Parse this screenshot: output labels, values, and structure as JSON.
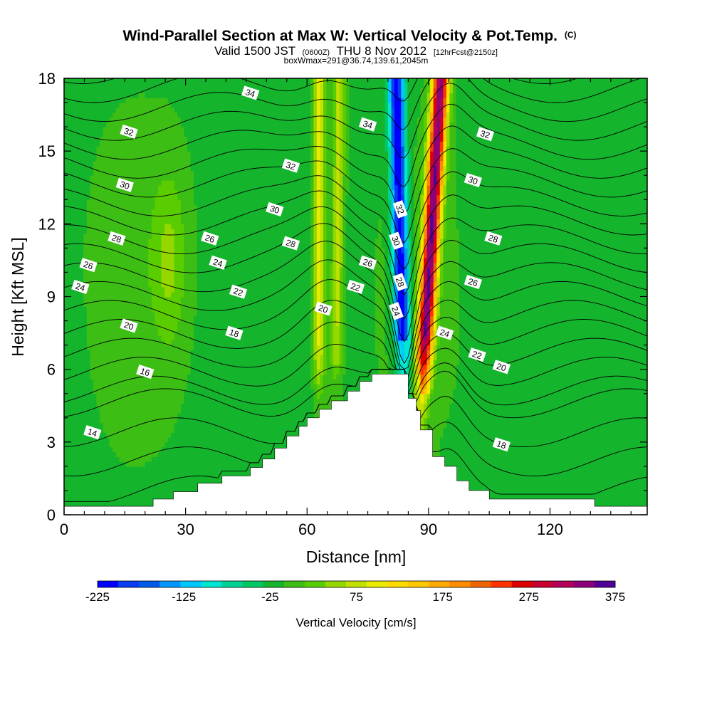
{
  "chart_data": {
    "type": "heatmap",
    "title": "Wind-Parallel Section at Max W: Vertical Velocity & Pot.Temp.",
    "title_mark": "(C)",
    "subtitle_parts": {
      "a": "Valid 1500 JST",
      "b": "(0600Z)",
      "c": "THU 8 Nov 2012",
      "d": "[12hrFcst@2150z]"
    },
    "subtitle2": "boxWmax=291@36.74,139.61,2045m",
    "xlabel": "Distance [nm]",
    "ylabel": "Height [Kft MSL]",
    "xlim": [
      0,
      144
    ],
    "ylim": [
      0,
      18
    ],
    "xticks": [
      0,
      30,
      60,
      90,
      120
    ],
    "yticks": [
      0,
      3,
      6,
      9,
      12,
      15,
      18
    ],
    "colorbar": {
      "label": "Vertical Velocity [cm/s]",
      "ticks": [
        -225,
        -125,
        -25,
        75,
        175,
        275,
        375
      ],
      "min": -225,
      "max": 375,
      "step": 25,
      "colors": [
        "#0000ff",
        "#0a3cf0",
        "#005ae6",
        "#0096ff",
        "#00c8ff",
        "#00e6d2",
        "#00d296",
        "#00c864",
        "#14b42d",
        "#3cbe14",
        "#5acd00",
        "#96d700",
        "#c3e100",
        "#ebeb00",
        "#ffdc00",
        "#ffc800",
        "#ffaa00",
        "#ff8c00",
        "#f06400",
        "#ff3200",
        "#dc0000",
        "#c80032",
        "#b4005a",
        "#8c0078",
        "#500096"
      ]
    },
    "terrain": [
      [
        0,
        0.35
      ],
      [
        22,
        0.35
      ],
      [
        22,
        0.65
      ],
      [
        27,
        0.65
      ],
      [
        27,
        0.95
      ],
      [
        33,
        0.95
      ],
      [
        33,
        1.3
      ],
      [
        39,
        1.3
      ],
      [
        39,
        1.6
      ],
      [
        46,
        1.6
      ],
      [
        46,
        1.95
      ],
      [
        49,
        1.95
      ],
      [
        49,
        2.3
      ],
      [
        52,
        2.3
      ],
      [
        52,
        2.75
      ],
      [
        55,
        2.75
      ],
      [
        55,
        3.25
      ],
      [
        58,
        3.25
      ],
      [
        58,
        3.65
      ],
      [
        60,
        3.65
      ],
      [
        60,
        4.0
      ],
      [
        63,
        4.0
      ],
      [
        63,
        4.35
      ],
      [
        66,
        4.35
      ],
      [
        66,
        4.7
      ],
      [
        70,
        4.7
      ],
      [
        70,
        5.1
      ],
      [
        73,
        5.1
      ],
      [
        73,
        5.5
      ],
      [
        76,
        5.5
      ],
      [
        76,
        5.8
      ],
      [
        85,
        5.8
      ],
      [
        85,
        4.8
      ],
      [
        87,
        4.8
      ],
      [
        87,
        4.3
      ],
      [
        88,
        4.3
      ],
      [
        88,
        3.5
      ],
      [
        91,
        3.5
      ],
      [
        91,
        2.4
      ],
      [
        94,
        2.4
      ],
      [
        94,
        2.0
      ],
      [
        97,
        2.0
      ],
      [
        97,
        1.4
      ],
      [
        100,
        1.4
      ],
      [
        100,
        1.0
      ],
      [
        105,
        1.0
      ],
      [
        105,
        0.65
      ],
      [
        131,
        0.65
      ],
      [
        131,
        0.35
      ],
      [
        144,
        0.35
      ]
    ],
    "w_background": [
      -10,
      10
    ],
    "w_features": [
      {
        "type": "updraft_band",
        "x_base": 63,
        "x_top": 63,
        "peak": 130
      },
      {
        "type": "updraft_band",
        "x_base": 67,
        "x_top": 68,
        "peak": 90
      },
      {
        "type": "downdraft_band",
        "x_base": 84,
        "x_top": 82,
        "peak": -225
      },
      {
        "type": "updraft_band",
        "x_base": 88,
        "x_top": 93,
        "peak": 375
      },
      {
        "type": "updraft_patch",
        "x": 26,
        "y": 10.5,
        "peak": 50
      }
    ],
    "theta_levels": [
      14,
      15,
      16,
      17,
      18,
      19,
      20,
      21,
      22,
      23,
      24,
      25,
      26,
      27,
      28,
      29,
      30,
      31,
      32,
      33,
      34,
      35
    ],
    "theta_labels": [
      {
        "text": "34",
        "x": 46,
        "y": 17.4
      },
      {
        "text": "32",
        "x": 16,
        "y": 15.8
      },
      {
        "text": "34",
        "x": 75,
        "y": 16.1
      },
      {
        "text": "32",
        "x": 104,
        "y": 15.7
      },
      {
        "text": "32",
        "x": 56,
        "y": 14.4
      },
      {
        "text": "30",
        "x": 15,
        "y": 13.6
      },
      {
        "text": "30",
        "x": 101,
        "y": 13.8
      },
      {
        "text": "30",
        "x": 52,
        "y": 12.6
      },
      {
        "text": "32",
        "x": 83,
        "y": 12.6
      },
      {
        "text": "28",
        "x": 13,
        "y": 11.4
      },
      {
        "text": "26",
        "x": 36,
        "y": 11.4
      },
      {
        "text": "28",
        "x": 56,
        "y": 11.2
      },
      {
        "text": "30",
        "x": 82,
        "y": 11.3
      },
      {
        "text": "28",
        "x": 106,
        "y": 11.4
      },
      {
        "text": "26",
        "x": 6,
        "y": 10.3
      },
      {
        "text": "24",
        "x": 38,
        "y": 10.4
      },
      {
        "text": "26",
        "x": 75,
        "y": 10.4
      },
      {
        "text": "24",
        "x": 4,
        "y": 9.4
      },
      {
        "text": "22",
        "x": 43,
        "y": 9.2
      },
      {
        "text": "22",
        "x": 72,
        "y": 9.4
      },
      {
        "text": "28",
        "x": 83,
        "y": 9.6
      },
      {
        "text": "26",
        "x": 101,
        "y": 9.6
      },
      {
        "text": "20",
        "x": 64,
        "y": 8.5
      },
      {
        "text": "24",
        "x": 82,
        "y": 8.4
      },
      {
        "text": "20",
        "x": 16,
        "y": 7.8
      },
      {
        "text": "18",
        "x": 42,
        "y": 7.5
      },
      {
        "text": "24",
        "x": 94,
        "y": 7.5
      },
      {
        "text": "22",
        "x": 102,
        "y": 6.6
      },
      {
        "text": "16",
        "x": 20,
        "y": 5.9
      },
      {
        "text": "20",
        "x": 108,
        "y": 6.1
      },
      {
        "text": "14",
        "x": 7,
        "y": 3.4
      },
      {
        "text": "18",
        "x": 108,
        "y": 2.9
      }
    ]
  }
}
